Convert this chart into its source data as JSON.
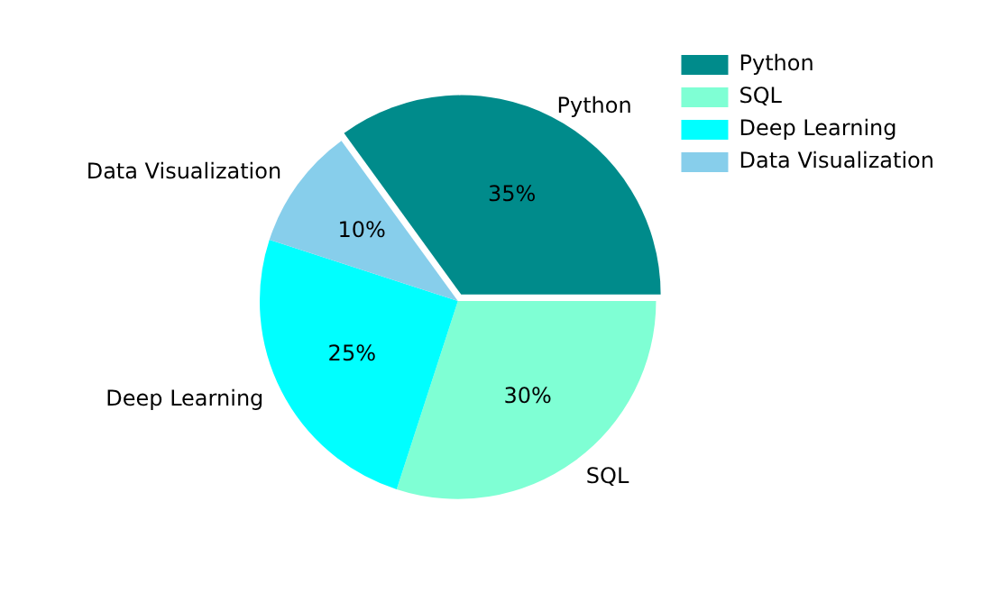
{
  "chart_data": {
    "type": "pie",
    "categories": [
      "Python",
      "SQL",
      "Deep Learning",
      "Data Visualization"
    ],
    "values": [
      35,
      30,
      25,
      10
    ],
    "colors": [
      "#008b8b",
      "#7fffd4",
      "#00ffff",
      "#87ceeb"
    ],
    "value_labels": [
      "35%",
      "30%",
      "25%",
      "10%"
    ],
    "legend": "top right"
  }
}
